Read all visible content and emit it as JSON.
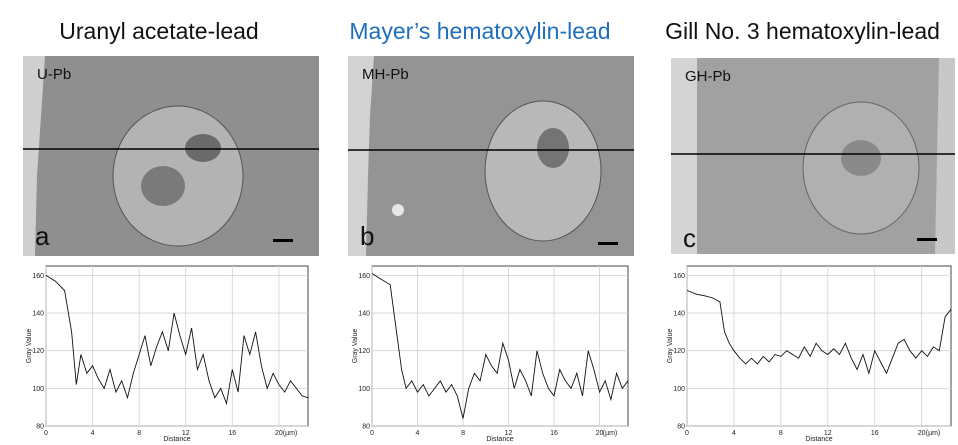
{
  "panels": [
    {
      "title": "Uranyl acetate-lead",
      "title_color": "#111111",
      "tag": "U-Pb",
      "letter": "a",
      "image_tone": "#8f8f8f",
      "chart_data": {
        "type": "line",
        "ylabel": "Gray Value",
        "xlabel": "Distance",
        "unit": "(µm)",
        "xlim": [
          0,
          22.5
        ],
        "ylim": [
          80,
          165
        ],
        "xticks": [
          0,
          4,
          8,
          12,
          16,
          20
        ],
        "yticks": [
          80,
          100,
          120,
          140,
          160
        ],
        "x": [
          0,
          0.8,
          1.6,
          2.2,
          2.6,
          3.0,
          3.5,
          4.0,
          4.5,
          5.0,
          5.5,
          6.0,
          6.5,
          7.0,
          7.5,
          8.0,
          8.5,
          9.0,
          9.5,
          10.0,
          10.5,
          11.0,
          11.5,
          12.0,
          12.5,
          13.0,
          13.5,
          14.0,
          14.5,
          15.0,
          15.5,
          16.0,
          16.5,
          17.0,
          17.5,
          18.0,
          18.5,
          19.0,
          19.5,
          20.0,
          20.5,
          21.0,
          21.5,
          22.0,
          22.5
        ],
        "y": [
          160,
          157,
          152,
          130,
          102,
          118,
          108,
          112,
          105,
          100,
          110,
          98,
          104,
          95,
          108,
          118,
          128,
          112,
          122,
          130,
          120,
          140,
          128,
          118,
          132,
          110,
          118,
          104,
          95,
          100,
          92,
          110,
          98,
          128,
          118,
          130,
          112,
          100,
          108,
          102,
          98,
          104,
          100,
          96,
          95
        ]
      }
    },
    {
      "title": "Mayer’s hematoxylin-lead",
      "title_color": "#1f6fbf",
      "tag": "MH-Pb",
      "letter": "b",
      "image_tone": "#949494",
      "chart_data": {
        "type": "line",
        "ylabel": "Gray Value",
        "xlabel": "Distance",
        "unit": "(µm)",
        "xlim": [
          0,
          22.5
        ],
        "ylim": [
          80,
          165
        ],
        "xticks": [
          0,
          4,
          8,
          12,
          16,
          20
        ],
        "yticks": [
          80,
          100,
          120,
          140,
          160
        ],
        "x": [
          0,
          0.8,
          1.6,
          2.2,
          2.6,
          3.0,
          3.5,
          4.0,
          4.5,
          5.0,
          5.5,
          6.0,
          6.5,
          7.0,
          7.5,
          8.0,
          8.5,
          9.0,
          9.5,
          10.0,
          10.5,
          11.0,
          11.5,
          12.0,
          12.5,
          13.0,
          13.5,
          14.0,
          14.5,
          15.0,
          15.5,
          16.0,
          16.5,
          17.0,
          17.5,
          18.0,
          18.5,
          19.0,
          19.5,
          20.0,
          20.5,
          21.0,
          21.5,
          22.0,
          22.5
        ],
        "y": [
          161,
          158,
          155,
          128,
          110,
          100,
          104,
          98,
          102,
          96,
          100,
          104,
          98,
          102,
          96,
          84,
          100,
          108,
          104,
          118,
          112,
          108,
          124,
          115,
          100,
          110,
          104,
          96,
          120,
          108,
          100,
          96,
          110,
          104,
          100,
          108,
          96,
          120,
          110,
          98,
          104,
          94,
          108,
          100,
          104
        ]
      }
    },
    {
      "title": "Gill No. 3 hematoxylin-lead",
      "title_color": "#111111",
      "tag": "GH-Pb",
      "letter": "c",
      "image_tone": "#a1a1a1",
      "chart_data": {
        "type": "line",
        "ylabel": "Gray Value",
        "xlabel": "Distance",
        "unit": "(µm)",
        "xlim": [
          0,
          22.5
        ],
        "ylim": [
          80,
          165
        ],
        "xticks": [
          0,
          4,
          8,
          12,
          16,
          20
        ],
        "yticks": [
          80,
          100,
          120,
          140,
          160
        ],
        "x": [
          0,
          0.8,
          1.6,
          2.2,
          2.8,
          3.2,
          3.6,
          4.0,
          4.5,
          5.0,
          5.5,
          6.0,
          6.5,
          7.0,
          7.5,
          8.0,
          8.5,
          9.0,
          9.5,
          10.0,
          10.5,
          11.0,
          11.5,
          12.0,
          12.5,
          13.0,
          13.5,
          14.0,
          14.5,
          15.0,
          15.5,
          16.0,
          16.5,
          17.0,
          17.5,
          18.0,
          18.5,
          19.0,
          19.5,
          20.0,
          20.5,
          21.0,
          21.5,
          22.0,
          22.5
        ],
        "y": [
          152,
          150,
          149,
          148,
          146,
          130,
          124,
          120,
          116,
          113,
          116,
          113,
          117,
          114,
          118,
          117,
          120,
          118,
          116,
          122,
          117,
          124,
          120,
          118,
          121,
          118,
          124,
          116,
          110,
          118,
          108,
          120,
          114,
          108,
          116,
          124,
          126,
          120,
          116,
          120,
          117,
          122,
          120,
          138,
          142
        ]
      }
    }
  ]
}
